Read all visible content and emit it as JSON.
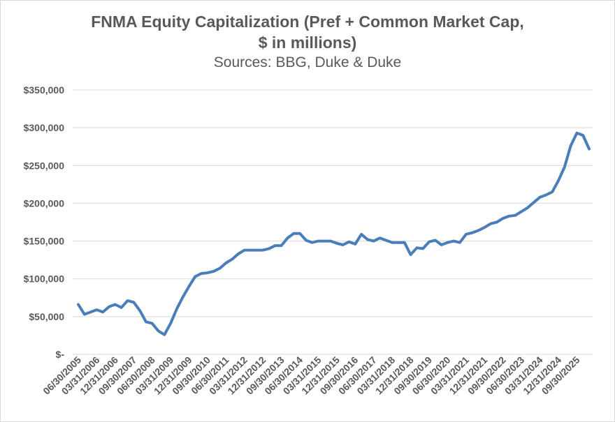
{
  "chart_data": {
    "type": "line",
    "title_line1": "FNMA Equity Capitalization (Pref + Common  Market Cap,",
    "title_line2": "$ in millions)",
    "subtitle": "Sources: BBG, Duke & Duke",
    "xlabel": "",
    "ylabel": "",
    "ylim": [
      0,
      350000
    ],
    "y_ticks": [
      {
        "value": 0,
        "label": "$-"
      },
      {
        "value": 50000,
        "label": "$50,000"
      },
      {
        "value": 100000,
        "label": "$100,000"
      },
      {
        "value": 150000,
        "label": "$150,000"
      },
      {
        "value": 200000,
        "label": "$200,000"
      },
      {
        "value": 250000,
        "label": "$250,000"
      },
      {
        "value": 300000,
        "label": "$300,000"
      },
      {
        "value": 350000,
        "label": "$350,000"
      }
    ],
    "grid": true,
    "legend": "none",
    "x_tick_labels": [
      {
        "index": 0,
        "label": "06/30/2005"
      },
      {
        "index": 3,
        "label": "03/31/2006"
      },
      {
        "index": 6,
        "label": "12/31/2006"
      },
      {
        "index": 9,
        "label": "09/30/2007"
      },
      {
        "index": 12,
        "label": "06/30/2008"
      },
      {
        "index": 15,
        "label": "03/31/2009"
      },
      {
        "index": 18,
        "label": "12/31/2009"
      },
      {
        "index": 21,
        "label": "09/30/2010"
      },
      {
        "index": 24,
        "label": "06/30/2011"
      },
      {
        "index": 27,
        "label": "03/31/2012"
      },
      {
        "index": 30,
        "label": "12/31/2012"
      },
      {
        "index": 33,
        "label": "09/30/2013"
      },
      {
        "index": 36,
        "label": "06/30/2014"
      },
      {
        "index": 39,
        "label": "03/31/2015"
      },
      {
        "index": 42,
        "label": "12/31/2015"
      },
      {
        "index": 45,
        "label": "09/30/2016"
      },
      {
        "index": 48,
        "label": "06/30/2017"
      },
      {
        "index": 51,
        "label": "03/31/2018"
      },
      {
        "index": 54,
        "label": "12/31/2018"
      },
      {
        "index": 57,
        "label": "09/30/2019"
      },
      {
        "index": 60,
        "label": "06/30/2020"
      },
      {
        "index": 63,
        "label": "03/31/2021"
      },
      {
        "index": 66,
        "label": "12/31/2021"
      },
      {
        "index": 69,
        "label": "09/30/2022"
      },
      {
        "index": 72,
        "label": "06/30/2023"
      },
      {
        "index": 75,
        "label": "03/31/2024"
      },
      {
        "index": 78,
        "label": "12/31/2024"
      },
      {
        "index": 81,
        "label": "09/30/2025"
      }
    ],
    "series": [
      {
        "name": "FNMA Equity Capitalization",
        "color": "#4a7ebb",
        "values": [
          66000,
          53000,
          56000,
          59000,
          56000,
          63000,
          66000,
          62000,
          71000,
          69000,
          58000,
          43000,
          41000,
          31000,
          26000,
          41000,
          60000,
          76000,
          90000,
          103000,
          107000,
          108000,
          110000,
          114000,
          121000,
          126000,
          133000,
          138000,
          138000,
          138000,
          138000,
          140000,
          144000,
          144000,
          154000,
          160000,
          160000,
          151000,
          148000,
          150000,
          150000,
          150000,
          147000,
          145000,
          149000,
          146000,
          159000,
          152000,
          150000,
          154000,
          151000,
          148000,
          148000,
          148000,
          132000,
          141000,
          140000,
          149000,
          151000,
          145000,
          148000,
          150000,
          148000,
          159000,
          161000,
          164000,
          168000,
          173000,
          175000,
          180000,
          183000,
          184000,
          189000,
          194000,
          201000,
          208000,
          211000,
          215000,
          230000,
          248000,
          276000,
          293000,
          290000,
          272000
        ]
      }
    ]
  }
}
